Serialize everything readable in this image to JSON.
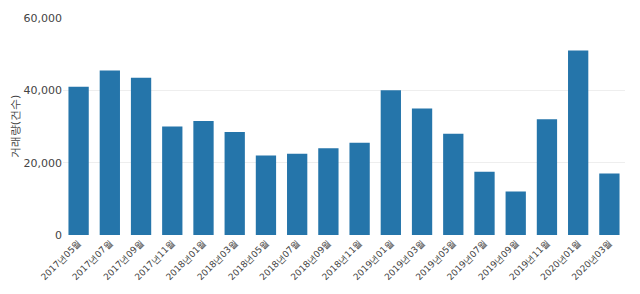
{
  "chart_data": {
    "type": "bar",
    "categories": [
      "2017년05월",
      "2017년07월",
      "2017년09월",
      "2017년11월",
      "2018년01월",
      "2018년03월",
      "2018년05월",
      "2018년07월",
      "2018년09월",
      "2018년11월",
      "2019년01월",
      "2019년03월",
      "2019년05월",
      "2019년07월",
      "2019년09월",
      "2019년11월",
      "2020년01월",
      "2020년03월"
    ],
    "values": [
      41000,
      45500,
      43500,
      30000,
      31500,
      28500,
      22000,
      22500,
      24000,
      25500,
      40000,
      35000,
      28000,
      17500,
      12000,
      32000,
      51000,
      17000
    ],
    "color": "#2575aa",
    "ylabel": "거래량(건수)",
    "ylim": [
      0,
      60000
    ],
    "yticks": [
      0,
      {
        "value": 20000,
        "label": "20,000"
      },
      {
        "value": 40000,
        "label": "40,000"
      },
      {
        "value": 60000,
        "label": "60,000"
      }
    ],
    "grid": true
  }
}
